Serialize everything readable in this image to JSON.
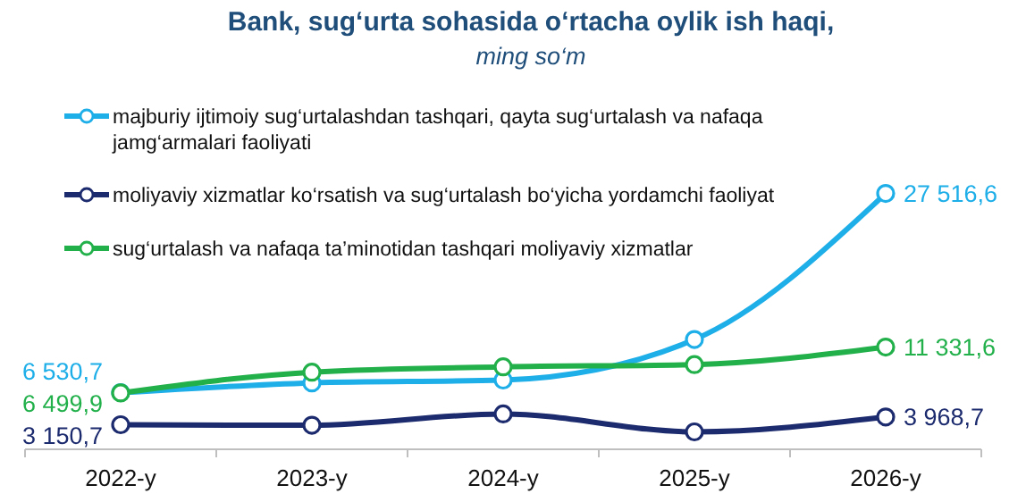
{
  "chart_data": {
    "type": "line",
    "title": "Bank, sug‘urta sohasida o‘rtacha oylik ish haqi,",
    "subtitle": "ming so‘m",
    "categories": [
      "2022-y",
      "2023-y",
      "2024-y",
      "2025-y",
      "2026-y"
    ],
    "legend": "top left",
    "marker": "circle",
    "line_style": "solid",
    "series": [
      {
        "name": "majburiy ijtimoiy sug‘urtalashdan tashqari, qayta sug‘urtalash va nafaqa jamg‘armalari faoliyati",
        "color": "#1eaee8",
        "values": [
          6530.7,
          7560,
          7860,
          12130,
          27516.6
        ],
        "value_labels": [
          "6 530,7",
          null,
          null,
          null,
          "27 516,6"
        ]
      },
      {
        "name": "moliyaviy xizmatlar ko‘rsatish va sug‘urtalash bo‘yicha yordamchi faoliyat",
        "color": "#1c2a6e",
        "values": [
          3150.7,
          3100,
          4290,
          2400,
          3968.7
        ],
        "value_labels": [
          "3 150,7",
          null,
          null,
          null,
          "3 968,7"
        ]
      },
      {
        "name": "sug‘urtalash va nafaqa ta’minotidan tashqari moliyaviy xizmatlar",
        "color": "#22b04b",
        "values": [
          6499.9,
          8690,
          9250,
          9490,
          11331.6
        ],
        "value_labels": [
          "6 499,9",
          null,
          null,
          null,
          "11 331,6"
        ]
      }
    ]
  }
}
